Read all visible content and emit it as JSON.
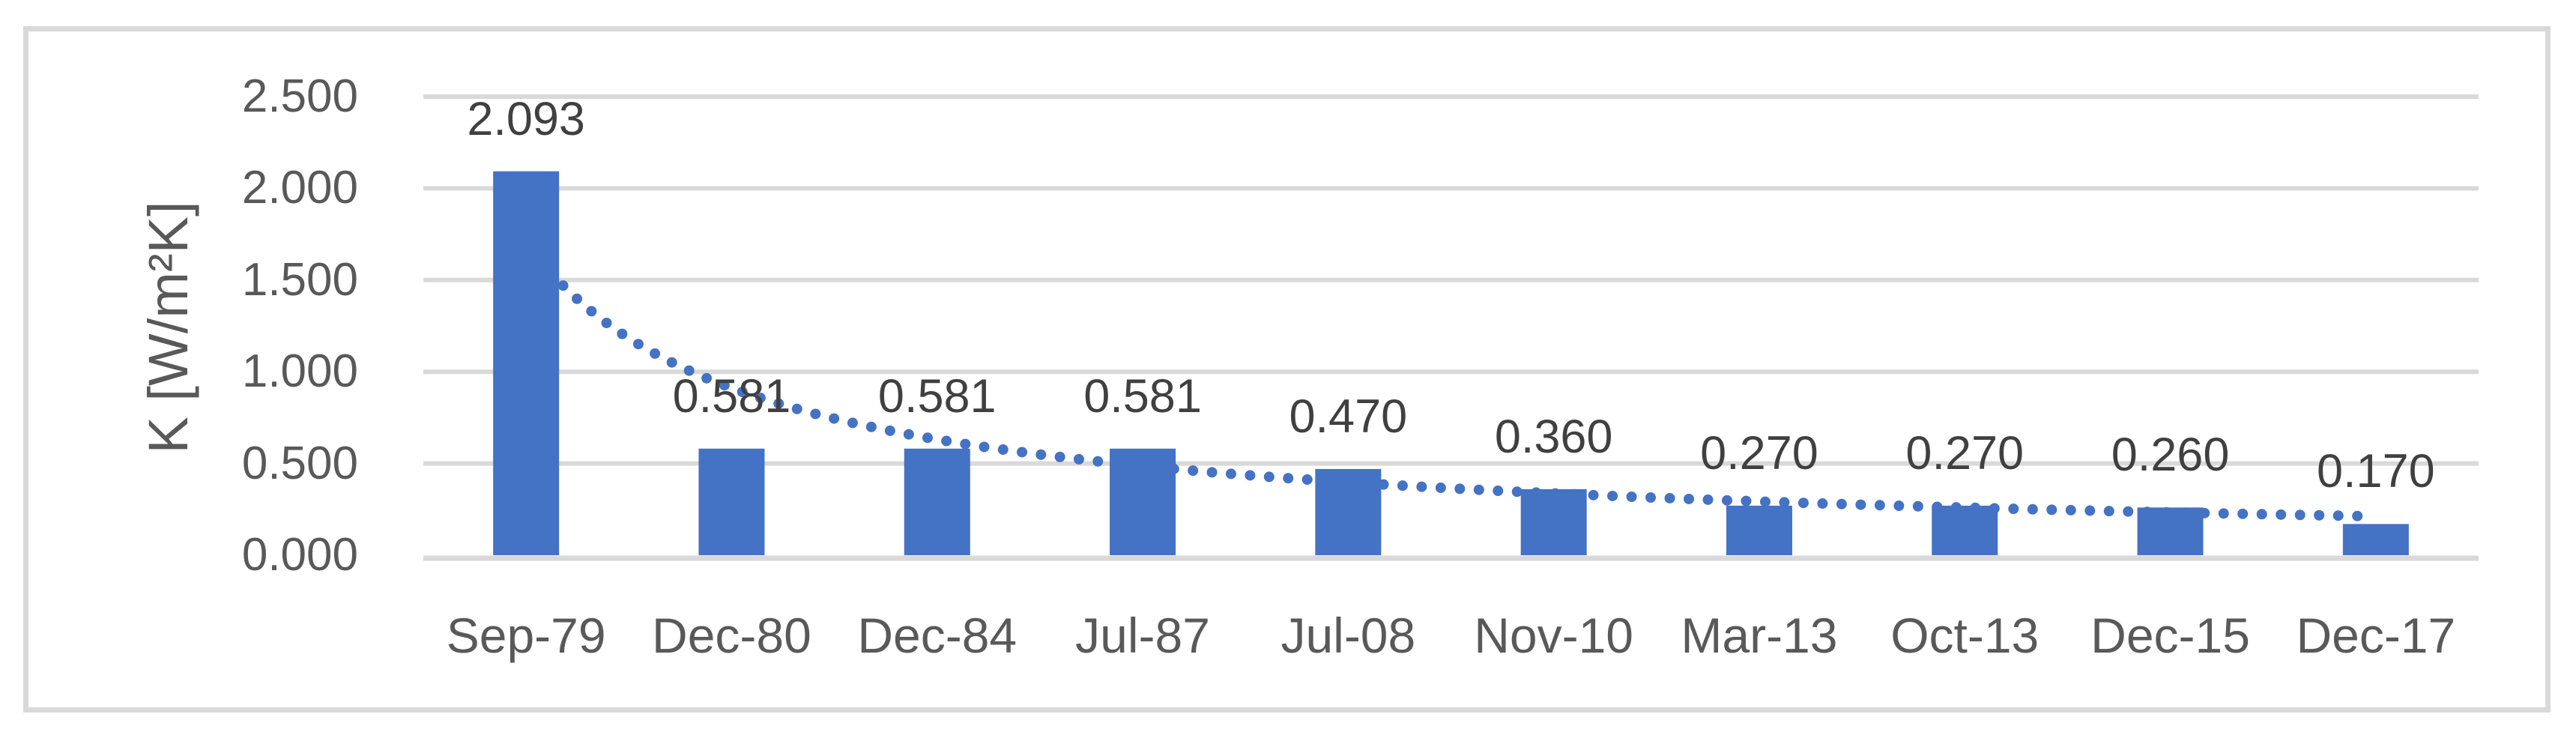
{
  "chart_data": {
    "type": "bar",
    "title": "",
    "categories": [
      "Sep-79",
      "Dec-80",
      "Dec-84",
      "Jul-87",
      "Jul-08",
      "Nov-10",
      "Mar-13",
      "Oct-13",
      "Dec-15",
      "Dec-17"
    ],
    "values": [
      2.093,
      0.581,
      0.581,
      0.581,
      0.47,
      0.36,
      0.27,
      0.27,
      0.26,
      0.17
    ],
    "data_labels": [
      "2.093",
      "0.581",
      "0.581",
      "0.581",
      "0.470",
      "0.360",
      "0.270",
      "0.270",
      "0.260",
      "0.170"
    ],
    "xlabel": "",
    "ylabel": "K [W/m²K]",
    "ylim": [
      0,
      2.5
    ],
    "ytick_step": 0.5,
    "ytick_labels": [
      "2.500",
      "2.000",
      "1.500",
      "1.000",
      "0.500",
      "0.000"
    ],
    "grid": true,
    "legend": "none",
    "bar_color": "#4472C4",
    "trendline": {
      "type": "power",
      "coefficient": 1.708,
      "exponent": -0.906,
      "style": "dotted",
      "color": "#4472C4",
      "n_start": 1.0,
      "n_end": 9.96
    }
  },
  "colors": {
    "bars": "#4472C4",
    "trendline": "#4472C4",
    "gridlines": "#D9D9D9",
    "axis_line": "#D9D9D9",
    "border": "#D9D9D9",
    "tick_text": "#595959",
    "label_text": "#404040",
    "background": "#FFFFFF"
  }
}
